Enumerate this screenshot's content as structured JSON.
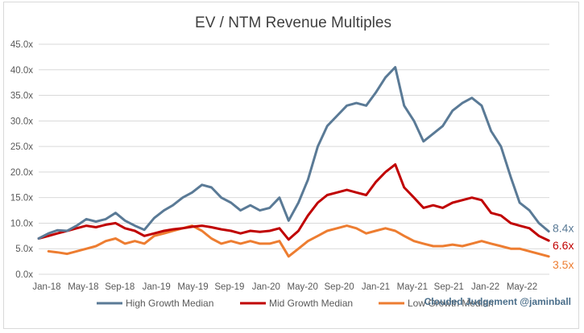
{
  "chart_data": {
    "type": "line",
    "title": "EV / NTM Revenue Multiples",
    "xlabel": "",
    "ylabel": "",
    "x_range": [
      "2018-01-01",
      "2022-06-03"
    ],
    "ylim": [
      0,
      45
    ],
    "y_ticks": [
      "0.0x",
      "5.0x",
      "10.0x",
      "15.0x",
      "20.0x",
      "25.0x",
      "30.0x",
      "35.0x",
      "40.0x",
      "45.0x"
    ],
    "x_ticks": [
      "Jan-18",
      "May-18",
      "Sep-18",
      "Jan-19",
      "May-19",
      "Sep-19",
      "Jan-20",
      "May-20",
      "Sep-20",
      "Jan-21",
      "May-21",
      "Sep-21",
      "Jan-22",
      "May-22"
    ],
    "grid": "horizontal",
    "legend_position": "bottom",
    "series": [
      {
        "name": "High Growth Median",
        "color": "#5a7a96",
        "end_label": "8.4x",
        "points": [
          [
            "2018-01-01",
            7.0
          ],
          [
            "2018-02-01",
            8.0
          ],
          [
            "2018-03-01",
            8.6
          ],
          [
            "2018-04-01",
            8.5
          ],
          [
            "2018-05-01",
            9.5
          ],
          [
            "2018-06-01",
            10.8
          ],
          [
            "2018-07-01",
            10.3
          ],
          [
            "2018-08-01",
            10.8
          ],
          [
            "2018-09-01",
            12.0
          ],
          [
            "2018-10-01",
            10.5
          ],
          [
            "2018-11-01",
            9.5
          ],
          [
            "2018-12-01",
            8.7
          ],
          [
            "2019-01-01",
            11.0
          ],
          [
            "2019-02-01",
            12.5
          ],
          [
            "2019-03-01",
            13.5
          ],
          [
            "2019-04-01",
            15.0
          ],
          [
            "2019-05-01",
            16.0
          ],
          [
            "2019-06-01",
            17.5
          ],
          [
            "2019-07-01",
            17.0
          ],
          [
            "2019-08-01",
            15.0
          ],
          [
            "2019-09-01",
            14.0
          ],
          [
            "2019-10-01",
            12.5
          ],
          [
            "2019-11-01",
            13.5
          ],
          [
            "2019-12-01",
            12.5
          ],
          [
            "2020-01-01",
            13.0
          ],
          [
            "2020-02-01",
            15.0
          ],
          [
            "2020-03-01",
            10.5
          ],
          [
            "2020-04-01",
            14.0
          ],
          [
            "2020-05-01",
            18.5
          ],
          [
            "2020-06-01",
            25.0
          ],
          [
            "2020-07-01",
            29.0
          ],
          [
            "2020-08-01",
            31.0
          ],
          [
            "2020-09-01",
            33.0
          ],
          [
            "2020-10-01",
            33.5
          ],
          [
            "2020-11-01",
            33.0
          ],
          [
            "2020-12-01",
            35.5
          ],
          [
            "2021-01-01",
            38.5
          ],
          [
            "2021-02-01",
            40.5
          ],
          [
            "2021-03-01",
            33.0
          ],
          [
            "2021-04-01",
            30.0
          ],
          [
            "2021-05-01",
            26.0
          ],
          [
            "2021-06-01",
            27.5
          ],
          [
            "2021-07-01",
            29.0
          ],
          [
            "2021-08-01",
            32.0
          ],
          [
            "2021-09-01",
            33.5
          ],
          [
            "2021-10-01",
            34.5
          ],
          [
            "2021-11-01",
            33.0
          ],
          [
            "2021-12-01",
            28.0
          ],
          [
            "2022-01-01",
            25.0
          ],
          [
            "2022-02-01",
            19.0
          ],
          [
            "2022-03-01",
            14.0
          ],
          [
            "2022-04-01",
            12.5
          ],
          [
            "2022-05-01",
            10.0
          ],
          [
            "2022-06-01",
            8.4
          ]
        ]
      },
      {
        "name": "Mid Growth Median",
        "color": "#c00000",
        "end_label": "6.6x",
        "points": [
          [
            "2018-01-01",
            7.0
          ],
          [
            "2018-02-01",
            7.5
          ],
          [
            "2018-03-01",
            8.0
          ],
          [
            "2018-04-01",
            8.5
          ],
          [
            "2018-05-01",
            9.0
          ],
          [
            "2018-06-01",
            9.5
          ],
          [
            "2018-07-01",
            9.2
          ],
          [
            "2018-08-01",
            9.7
          ],
          [
            "2018-09-01",
            10.0
          ],
          [
            "2018-10-01",
            9.0
          ],
          [
            "2018-11-01",
            8.5
          ],
          [
            "2018-12-01",
            7.5
          ],
          [
            "2019-01-01",
            8.0
          ],
          [
            "2019-02-01",
            8.5
          ],
          [
            "2019-03-01",
            8.8
          ],
          [
            "2019-04-01",
            9.0
          ],
          [
            "2019-05-01",
            9.3
          ],
          [
            "2019-06-01",
            9.5
          ],
          [
            "2019-07-01",
            9.2
          ],
          [
            "2019-08-01",
            8.8
          ],
          [
            "2019-09-01",
            8.5
          ],
          [
            "2019-10-01",
            8.0
          ],
          [
            "2019-11-01",
            8.5
          ],
          [
            "2019-12-01",
            8.3
          ],
          [
            "2020-01-01",
            8.5
          ],
          [
            "2020-02-01",
            9.0
          ],
          [
            "2020-03-01",
            6.8
          ],
          [
            "2020-04-01",
            8.5
          ],
          [
            "2020-05-01",
            11.5
          ],
          [
            "2020-06-01",
            14.0
          ],
          [
            "2020-07-01",
            15.5
          ],
          [
            "2020-08-01",
            16.0
          ],
          [
            "2020-09-01",
            16.5
          ],
          [
            "2020-10-01",
            16.0
          ],
          [
            "2020-11-01",
            15.5
          ],
          [
            "2020-12-01",
            18.0
          ],
          [
            "2021-01-01",
            20.0
          ],
          [
            "2021-02-01",
            21.5
          ],
          [
            "2021-03-01",
            17.0
          ],
          [
            "2021-04-01",
            15.0
          ],
          [
            "2021-05-01",
            13.0
          ],
          [
            "2021-06-01",
            13.5
          ],
          [
            "2021-07-01",
            13.0
          ],
          [
            "2021-08-01",
            14.0
          ],
          [
            "2021-09-01",
            14.5
          ],
          [
            "2021-10-01",
            15.0
          ],
          [
            "2021-11-01",
            14.5
          ],
          [
            "2021-12-01",
            12.0
          ],
          [
            "2022-01-01",
            11.5
          ],
          [
            "2022-02-01",
            10.0
          ],
          [
            "2022-03-01",
            9.5
          ],
          [
            "2022-04-01",
            9.0
          ],
          [
            "2022-05-01",
            7.5
          ],
          [
            "2022-06-01",
            6.6
          ]
        ]
      },
      {
        "name": "Low Growth Median",
        "color": "#ed7d31",
        "end_label": "3.5x",
        "points": [
          [
            "2018-02-01",
            4.5
          ],
          [
            "2018-03-01",
            4.3
          ],
          [
            "2018-04-01",
            4.0
          ],
          [
            "2018-05-01",
            4.5
          ],
          [
            "2018-06-01",
            5.0
          ],
          [
            "2018-07-01",
            5.5
          ],
          [
            "2018-08-01",
            6.5
          ],
          [
            "2018-09-01",
            7.0
          ],
          [
            "2018-10-01",
            6.0
          ],
          [
            "2018-11-01",
            6.5
          ],
          [
            "2018-12-01",
            6.0
          ],
          [
            "2019-01-01",
            7.5
          ],
          [
            "2019-02-01",
            8.0
          ],
          [
            "2019-03-01",
            8.5
          ],
          [
            "2019-04-01",
            9.0
          ],
          [
            "2019-05-01",
            9.5
          ],
          [
            "2019-06-01",
            8.5
          ],
          [
            "2019-07-01",
            7.0
          ],
          [
            "2019-08-01",
            6.0
          ],
          [
            "2019-09-01",
            6.5
          ],
          [
            "2019-10-01",
            6.0
          ],
          [
            "2019-11-01",
            6.5
          ],
          [
            "2019-12-01",
            6.0
          ],
          [
            "2020-01-01",
            6.0
          ],
          [
            "2020-02-01",
            6.5
          ],
          [
            "2020-03-01",
            3.5
          ],
          [
            "2020-04-01",
            5.0
          ],
          [
            "2020-05-01",
            6.5
          ],
          [
            "2020-06-01",
            7.5
          ],
          [
            "2020-07-01",
            8.5
          ],
          [
            "2020-08-01",
            9.0
          ],
          [
            "2020-09-01",
            9.5
          ],
          [
            "2020-10-01",
            9.0
          ],
          [
            "2020-11-01",
            8.0
          ],
          [
            "2020-12-01",
            8.5
          ],
          [
            "2021-01-01",
            9.0
          ],
          [
            "2021-02-01",
            8.5
          ],
          [
            "2021-03-01",
            7.5
          ],
          [
            "2021-04-01",
            6.5
          ],
          [
            "2021-05-01",
            6.0
          ],
          [
            "2021-06-01",
            5.5
          ],
          [
            "2021-07-01",
            5.5
          ],
          [
            "2021-08-01",
            5.8
          ],
          [
            "2021-09-01",
            5.5
          ],
          [
            "2021-10-01",
            6.0
          ],
          [
            "2021-11-01",
            6.5
          ],
          [
            "2021-12-01",
            6.0
          ],
          [
            "2022-01-01",
            5.5
          ],
          [
            "2022-02-01",
            5.0
          ],
          [
            "2022-03-01",
            5.0
          ],
          [
            "2022-04-01",
            4.5
          ],
          [
            "2022-05-01",
            4.0
          ],
          [
            "2022-06-01",
            3.5
          ]
        ]
      }
    ],
    "source_note": "Clouded Judgement @jaminball"
  }
}
